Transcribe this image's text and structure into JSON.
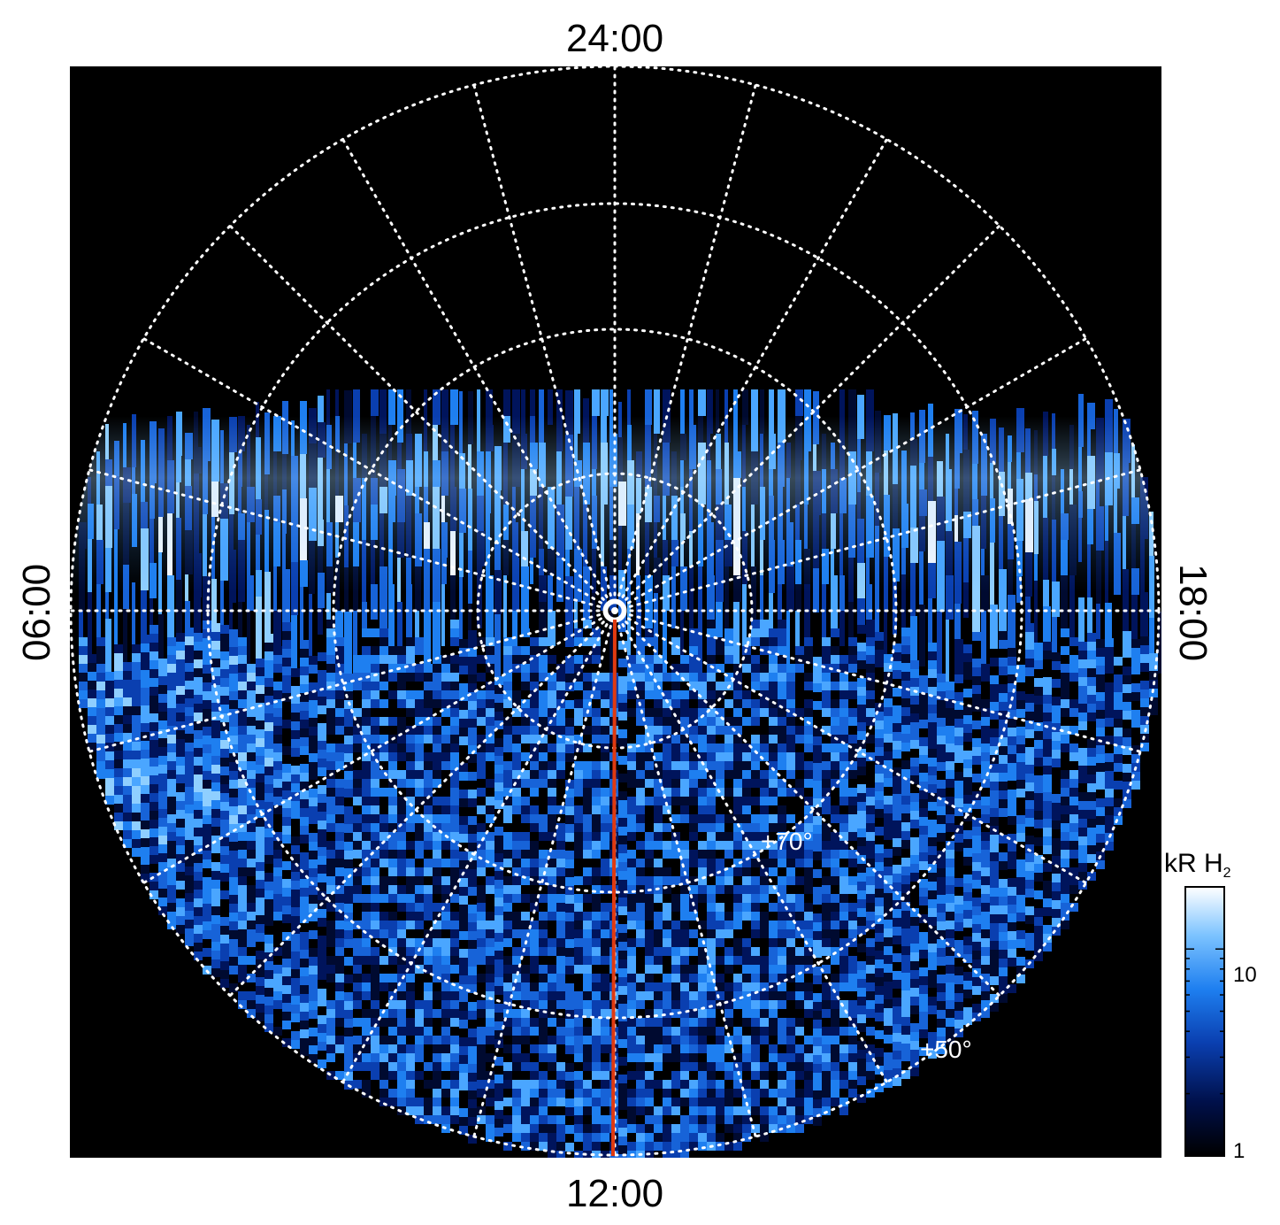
{
  "figure": {
    "local_time_labels": {
      "top": "24:00",
      "bottom": "12:00",
      "left": "06:00",
      "right": "18:00"
    },
    "latitude_labels": [
      "+70°",
      "+50°"
    ],
    "colorbar": {
      "title_main": "kR H",
      "title_sub": "2",
      "tick_labels": [
        "10",
        "1"
      ],
      "scale": "log",
      "colors": [
        "#000000",
        "#00104a",
        "#0a3fb0",
        "#1e7ff0",
        "#7cc3ff",
        "#ffffff"
      ]
    },
    "colors": {
      "background": "#000000",
      "grid": "#ffffff",
      "meridian_line": "#e03a10"
    }
  }
}
